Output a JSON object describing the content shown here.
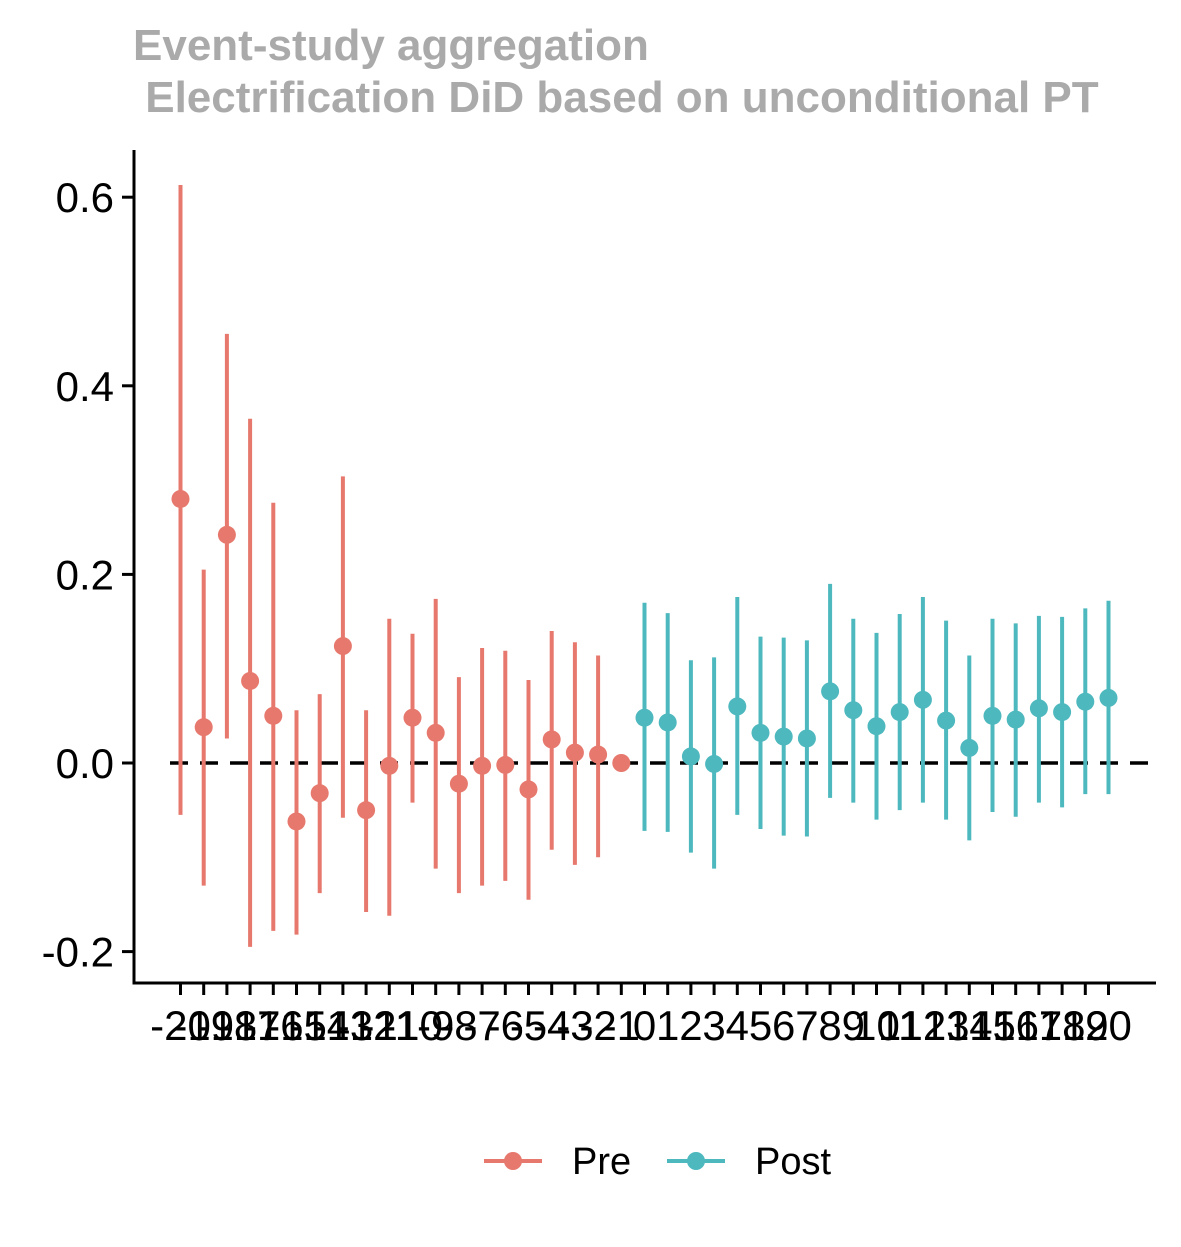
{
  "chart_data": {
    "type": "scatter",
    "title_line1": "Event-study aggregation",
    "title_line2": " Electrification DiD based on unconditional PT",
    "xlabel": "",
    "ylabel": "",
    "ylim": [
      -0.22,
      0.65
    ],
    "y_ticks": [
      -0.2,
      0.0,
      0.2,
      0.4,
      0.6
    ],
    "y_tick_labels": [
      "-0.2",
      "0.0",
      "0.2",
      "0.4",
      "0.6"
    ],
    "reference_line": 0.0,
    "grid": false,
    "legend_position": "bottom",
    "colors": {
      "Pre": "#E7786D",
      "Post": "#4DB8BE"
    },
    "series": [
      {
        "name": "Pre",
        "x": [
          -20,
          -19,
          -18,
          -17,
          -16,
          -15,
          -14,
          -13,
          -12,
          -11,
          -10,
          -9,
          -8,
          -7,
          -6,
          -5,
          -4,
          -3,
          -2,
          -1
        ],
        "estimate": [
          0.28,
          0.038,
          0.242,
          0.087,
          0.05,
          -0.062,
          -0.032,
          0.124,
          -0.05,
          -0.003,
          0.048,
          0.032,
          -0.022,
          -0.003,
          -0.002,
          -0.028,
          0.025,
          0.011,
          0.009,
          0.0
        ],
        "ci_lower": [
          -0.055,
          -0.13,
          0.026,
          -0.195,
          -0.178,
          -0.182,
          -0.138,
          -0.058,
          -0.158,
          -0.162,
          -0.042,
          -0.112,
          -0.138,
          -0.13,
          -0.125,
          -0.145,
          -0.092,
          -0.108,
          -0.1,
          0.0
        ],
        "ci_upper": [
          0.613,
          0.205,
          0.455,
          0.365,
          0.276,
          0.056,
          0.073,
          0.304,
          0.056,
          0.153,
          0.137,
          0.174,
          0.091,
          0.122,
          0.119,
          0.088,
          0.14,
          0.128,
          0.114,
          0.0
        ]
      },
      {
        "name": "Post",
        "x": [
          0,
          1,
          2,
          3,
          4,
          5,
          6,
          7,
          8,
          9,
          10,
          11,
          12,
          13,
          14,
          15,
          16,
          17,
          18,
          19,
          20
        ],
        "estimate": [
          0.048,
          0.043,
          0.007,
          -0.001,
          0.06,
          0.032,
          0.028,
          0.026,
          0.076,
          0.056,
          0.039,
          0.054,
          0.067,
          0.045,
          0.016,
          0.05,
          0.046,
          0.058,
          0.054,
          0.065,
          0.069
        ],
        "ci_lower": [
          -0.072,
          -0.073,
          -0.095,
          -0.112,
          -0.055,
          -0.07,
          -0.077,
          -0.078,
          -0.037,
          -0.042,
          -0.06,
          -0.05,
          -0.042,
          -0.06,
          -0.082,
          -0.052,
          -0.057,
          -0.042,
          -0.047,
          -0.033,
          -0.033
        ],
        "ci_upper": [
          0.17,
          0.159,
          0.109,
          0.112,
          0.176,
          0.134,
          0.133,
          0.13,
          0.19,
          0.153,
          0.138,
          0.158,
          0.176,
          0.151,
          0.114,
          0.153,
          0.148,
          0.156,
          0.155,
          0.164,
          0.172
        ]
      }
    ],
    "x_tick_labels": [
      "-20",
      "-19",
      "-18",
      "-17",
      "-16",
      "-15",
      "-14",
      "-13",
      "-12",
      "-11",
      "-10",
      "-9",
      "-8",
      "-7",
      "-6",
      "-5",
      "-4",
      "-3",
      "-2",
      "-1",
      "0",
      "1",
      "2",
      "3",
      "4",
      "5",
      "6",
      "7",
      "8",
      "9",
      "10",
      "11",
      "12",
      "13",
      "14",
      "15",
      "16",
      "17",
      "18",
      "19",
      "20"
    ],
    "legend": [
      {
        "name": "Pre",
        "label": "Pre"
      },
      {
        "name": "Post",
        "label": "Post"
      }
    ]
  }
}
